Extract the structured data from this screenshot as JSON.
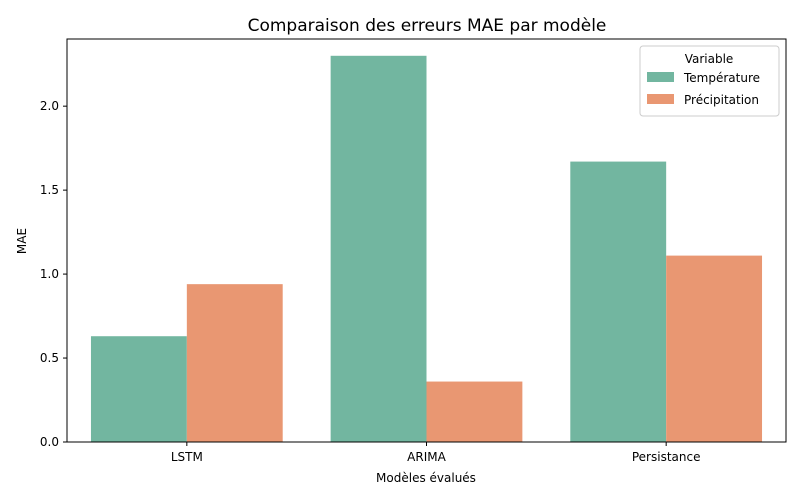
{
  "chart_data": {
    "type": "bar",
    "title": "Comparaison des erreurs MAE par modèle",
    "xlabel": "Modèles évalués",
    "ylabel": "MAE",
    "categories": [
      "LSTM",
      "ARIMA",
      "Persistance"
    ],
    "series": [
      {
        "name": "Température",
        "color": "#72b6a0",
        "values": [
          0.63,
          2.3,
          1.67
        ]
      },
      {
        "name": "Précipitation",
        "color": "#e99772",
        "values": [
          0.94,
          0.36,
          1.11
        ]
      }
    ],
    "ylim": [
      0,
      2.4
    ],
    "yticks": [
      0.0,
      0.5,
      1.0,
      1.5,
      2.0
    ],
    "ytick_labels": [
      "0.0",
      "0.5",
      "1.0",
      "1.5",
      "2.0"
    ],
    "grid": false,
    "legend": {
      "title": "Variable",
      "position": "top-right"
    }
  }
}
